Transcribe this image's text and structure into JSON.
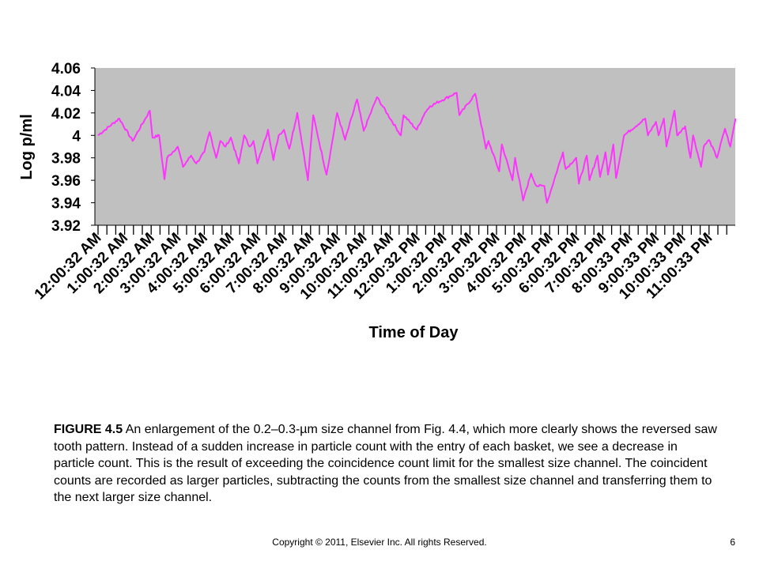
{
  "chart_data": {
    "type": "line",
    "title": "",
    "xlabel": "Time of Day",
    "ylabel": "Log p/ml",
    "ylim": [
      3.92,
      4.06
    ],
    "yticks": [
      "4.06",
      "4.04",
      "4.02",
      "4",
      "3.98",
      "3.96",
      "3.94",
      "3.92"
    ],
    "xticks": [
      "12:00:32 AM",
      "1:00:32 AM",
      "2:00:32 AM",
      "3:00:32 AM",
      "4:00:32 AM",
      "5:00:32 AM",
      "6:00:32 AM",
      "7:00:32 AM",
      "8:00:32 AM",
      "9:00:32 AM",
      "10:00:32 AM",
      "11:00:32 AM",
      "12:00:32 PM",
      "1:00:32 PM",
      "2:00:32 PM",
      "3:00:32 PM",
      "4:00:32 PM",
      "5:00:32 PM",
      "6:00:32 PM",
      "7:00:32 PM",
      "8:00:33 PM",
      "9:00:33 PM",
      "10:00:33 PM",
      "11:00:33 PM"
    ],
    "x_hours": [
      0,
      0.8,
      1.3,
      1.95,
      2.05,
      2.3,
      2.5,
      2.6,
      3.0,
      3.2,
      3.5,
      3.7,
      4.0,
      4.2,
      4.45,
      4.6,
      4.8,
      5.0,
      5.3,
      5.5,
      5.7,
      5.85,
      6.0,
      6.2,
      6.4,
      6.6,
      6.8,
      7.0,
      7.2,
      7.5,
      7.9,
      8.1,
      8.6,
      8.75,
      9.0,
      9.3,
      9.75,
      10.0,
      10.5,
      11.4,
      11.5,
      12.0,
      12.3,
      12.5,
      13.5,
      13.6,
      14.2,
      14.6,
      14.7,
      15.1,
      15.2,
      15.6,
      15.7,
      16.0,
      16.3,
      16.5,
      16.8,
      16.9,
      17.5,
      17.6,
      18.0,
      18.1,
      18.4,
      18.5,
      18.8,
      18.9,
      19.1,
      19.2,
      19.4,
      19.5,
      19.8,
      20.6,
      20.7,
      21.0,
      21.1,
      21.3,
      21.4,
      21.7,
      21.8,
      22.1,
      22.3,
      22.4,
      22.7,
      22.8,
      23.0,
      23.3,
      23.6,
      23.8,
      24.0
    ],
    "series": [
      {
        "values": [
          4.0,
          4.015,
          3.995,
          4.022,
          3.998,
          4.0,
          3.961,
          3.98,
          3.99,
          3.972,
          3.982,
          3.975,
          3.985,
          4.003,
          3.98,
          3.995,
          3.99,
          3.998,
          3.975,
          4.0,
          3.99,
          3.995,
          3.975,
          3.99,
          4.005,
          3.978,
          4.0,
          4.005,
          3.988,
          4.02,
          3.96,
          4.018,
          3.965,
          3.985,
          4.02,
          3.996,
          4.032,
          4.004,
          4.034,
          4.0,
          4.018,
          4.005,
          4.02,
          4.026,
          4.038,
          4.018,
          4.037,
          3.988,
          3.995,
          3.968,
          3.992,
          3.96,
          3.98,
          3.942,
          3.966,
          3.955,
          3.955,
          3.94,
          3.985,
          3.97,
          3.98,
          3.957,
          3.982,
          3.96,
          3.982,
          3.963,
          3.985,
          3.965,
          3.992,
          3.962,
          4.0,
          4.015,
          4.0,
          4.012,
          4.0,
          4.015,
          3.99,
          4.022,
          4.0,
          4.008,
          3.98,
          4.0,
          3.972,
          3.99,
          3.996,
          3.98,
          4.006,
          3.99,
          4.015
        ]
      }
    ],
    "color": "#ff33ff",
    "plot_bg": "#c0c0c0",
    "grid": false
  },
  "caption": {
    "label": "FIGURE 4.5",
    "text": " An enlargement of the 0.2–0.3-µm size channel from Fig. 4.4, which more clearly shows the reversed saw tooth pattern. Instead of a sudden increase in particle count with the entry of each basket, we see a decrease in particle count. This is the result of exceeding the coincidence count limit for the smallest size channel. The coincident counts are recorded as larger particles, subtracting the counts from the smallest size channel and transferring them to the next larger size channel."
  },
  "footer": {
    "copyright": "Copyright © 2011, Elsevier Inc. All rights Reserved.",
    "page": "6"
  }
}
